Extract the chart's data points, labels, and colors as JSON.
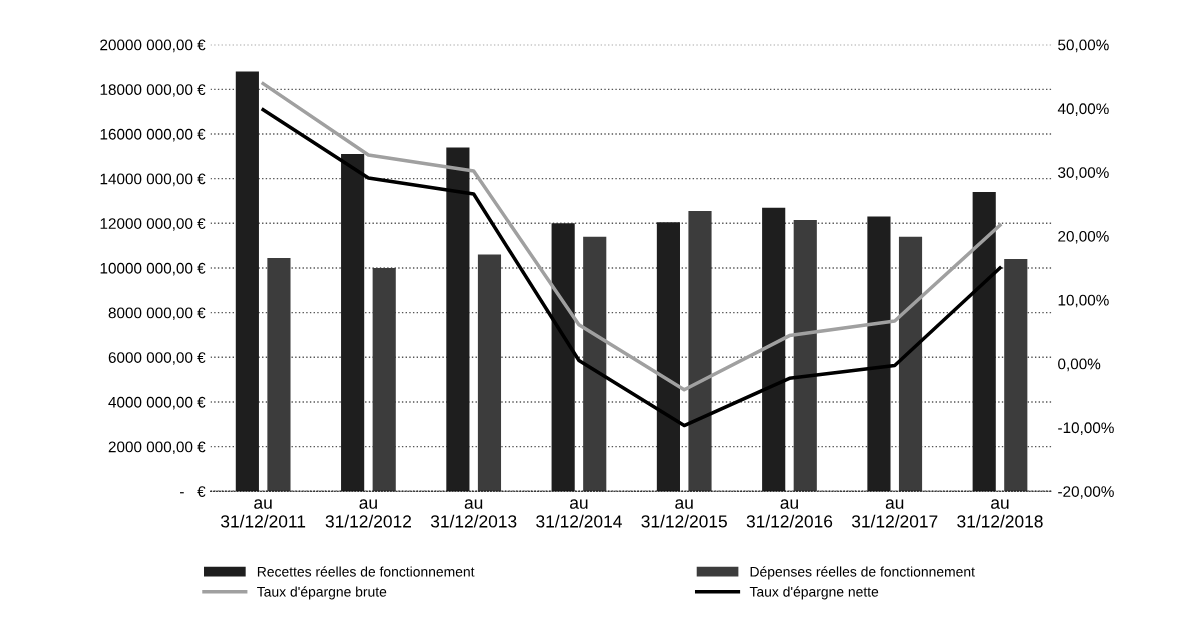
{
  "chart_data": {
    "type": "bar",
    "categories": [
      "au\n31/12/2011",
      "au\n31/12/2012",
      "au\n31/12/2013",
      "au\n31/12/2014",
      "au\n31/12/2015",
      "au\n31/12/2016",
      "au\n31/12/2017",
      "au\n31/12/2018"
    ],
    "series": [
      {
        "name": "Recettes réelles de fonctionnement",
        "color": "#1e1e1e",
        "values": [
          18800000,
          15100000,
          15400000,
          12000000,
          12050000,
          12700000,
          12300000,
          13400000
        ]
      },
      {
        "name": "Dépenses réelles de fonctionnement",
        "color": "#3c3c3c",
        "values": [
          10450000,
          10000000,
          10600000,
          11400000,
          12550000,
          12150000,
          11400000,
          10400000
        ]
      },
      {
        "name": "Taux d'épargne brute",
        "type": "line",
        "axis": "y2",
        "color": "#a0a0a0",
        "values": [
          43.9,
          32.7,
          30.2,
          6.1,
          -4.1,
          4.4,
          6.7,
          21.7
        ]
      },
      {
        "name": "Taux d'épargne nette",
        "type": "line",
        "axis": "y2",
        "color": "#000000",
        "values": [
          39.8,
          29.1,
          26.6,
          0.5,
          -9.7,
          -2.3,
          -0.3,
          15.0
        ]
      }
    ],
    "ylim": [
      0,
      20000000
    ],
    "yticks": [
      {
        "value": 0,
        "label": "-   €"
      },
      {
        "value": 2000000,
        "label": "2000 000,00 €"
      },
      {
        "value": 4000000,
        "label": "4000 000,00 €"
      },
      {
        "value": 6000000,
        "label": "6000 000,00 €"
      },
      {
        "value": 8000000,
        "label": "8000 000,00 €"
      },
      {
        "value": 10000000,
        "label": "10000 000,00 €"
      },
      {
        "value": 12000000,
        "label": "12000 000,00 €"
      },
      {
        "value": 14000000,
        "label": "14000 000,00 €"
      },
      {
        "value": 16000000,
        "label": "16000 000,00 €"
      },
      {
        "value": 18000000,
        "label": "18000 000,00 €"
      },
      {
        "value": 20000000,
        "label": "20000 000,00 €"
      }
    ],
    "y2lim": [
      -20,
      50
    ],
    "y2ticks": [
      {
        "value": -20,
        "label": "-20,00%"
      },
      {
        "value": -10,
        "label": "-10,00%"
      },
      {
        "value": 0,
        "label": "0,00%"
      },
      {
        "value": 10,
        "label": "10,00%"
      },
      {
        "value": 20,
        "label": "20,00%"
      },
      {
        "value": 30,
        "label": "30,00%"
      },
      {
        "value": 40,
        "label": "40,00%"
      },
      {
        "value": 50,
        "label": "50,00%"
      }
    ],
    "grid": "y",
    "legend": "bottom",
    "line_style": "solid",
    "marker": "none"
  }
}
